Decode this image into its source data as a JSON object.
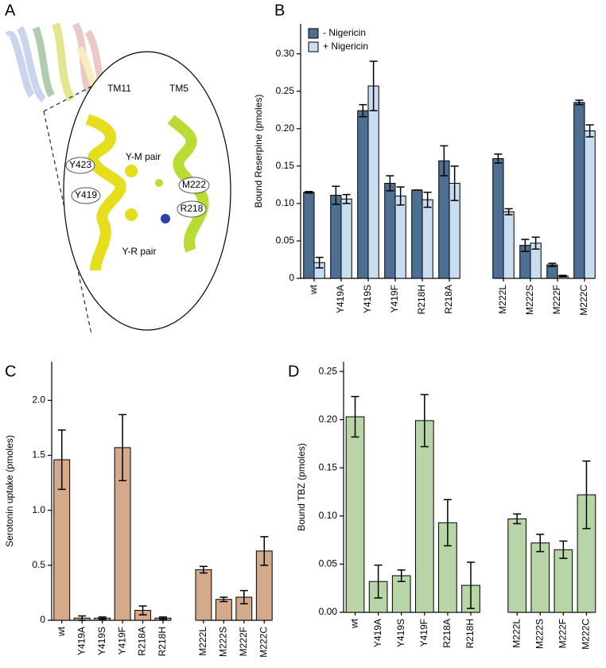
{
  "diagram": {
    "panel": "A",
    "labels": [
      "TM11",
      "TM5",
      "Y423",
      "Y-M pair",
      "M222",
      "Y419",
      "R218",
      "Y-R pair"
    ]
  },
  "chart_data": [
    {
      "type": "bar",
      "panel": "B",
      "y_label": "Bound Reserpine (pmoles)",
      "categories": [
        "wt",
        "Y419A",
        "Y419S",
        "Y419F",
        "R218H",
        "R218A",
        null,
        "M222L",
        "M222S",
        "M222F",
        "M222C"
      ],
      "series": [
        {
          "name": "- Nigericin",
          "color": "#4d6f93",
          "values": [
            0.115,
            0.111,
            0.224,
            0.127,
            0.118,
            0.157,
            null,
            0.16,
            0.044,
            0.018,
            0.235
          ],
          "errors": [
            0.001,
            0.012,
            0.008,
            0.01,
            0.0,
            0.02,
            null,
            0.006,
            0.008,
            0.002,
            0.003
          ]
        },
        {
          "name": "+ Nigericin",
          "color": "#c9ddf0",
          "values": [
            0.021,
            0.106,
            0.257,
            0.11,
            0.105,
            0.127,
            null,
            0.089,
            0.047,
            0.003,
            0.197
          ],
          "errors": [
            0.007,
            0.006,
            0.033,
            0.012,
            0.01,
            0.023,
            null,
            0.004,
            0.008,
            0.001,
            0.008
          ]
        }
      ],
      "ylim": [
        0,
        0.34
      ],
      "yticks": [
        0,
        0.05,
        {
          "value": 0.1,
          "label": "0.10"
        },
        0.15,
        {
          "value": 0.2,
          "label": "0.20"
        },
        0.25,
        {
          "value": 0.3,
          "label": "0.30"
        }
      ],
      "legend": "top-left"
    },
    {
      "type": "bar",
      "panel": "C",
      "y_label": "Serotonin uptake (pmoles)",
      "categories": [
        "wt",
        "Y419A",
        "Y419S",
        "Y419F",
        "R218A",
        "R218H",
        null,
        "M222L",
        "M222S",
        "M222F",
        "M222C"
      ],
      "series": [
        {
          "color": "#d5aa8b",
          "values": [
            1.46,
            0.02,
            0.02,
            1.57,
            0.09,
            0.02,
            null,
            0.46,
            0.19,
            0.21,
            0.63
          ],
          "errors": [
            0.27,
            0.02,
            0.01,
            0.3,
            0.04,
            0.01,
            null,
            0.03,
            0.02,
            0.06,
            0.13
          ]
        }
      ],
      "ylim": [
        0,
        2.35
      ],
      "yticks": [
        0,
        0.5,
        {
          "value": 1,
          "label": "1.0"
        },
        1.5,
        {
          "value": 2,
          "label": "2.0"
        }
      ]
    },
    {
      "type": "bar",
      "panel": "D",
      "y_label": "Bound TBZ (pmoles)",
      "categories": [
        "wt",
        "Y419A",
        "Y419S",
        "Y419F",
        "R218A",
        "R218H",
        null,
        "M222L",
        "M222S",
        "M222F",
        "M222C"
      ],
      "series": [
        {
          "color": "#b8d5a7",
          "values": [
            0.203,
            0.032,
            0.038,
            0.199,
            0.093,
            0.028,
            null,
            0.097,
            0.072,
            0.065,
            0.122
          ],
          "errors": [
            0.021,
            0.017,
            0.006,
            0.027,
            0.024,
            0.024,
            null,
            0.005,
            0.009,
            0.009,
            0.035
          ]
        }
      ],
      "ylim": [
        0,
        0.26
      ],
      "yticks": [
        {
          "value": 0,
          "label": "0.00"
        },
        0.05,
        {
          "value": 0.1,
          "label": "0.10"
        },
        0.15,
        {
          "value": 0.2,
          "label": "0.20"
        },
        0.25
      ]
    }
  ]
}
